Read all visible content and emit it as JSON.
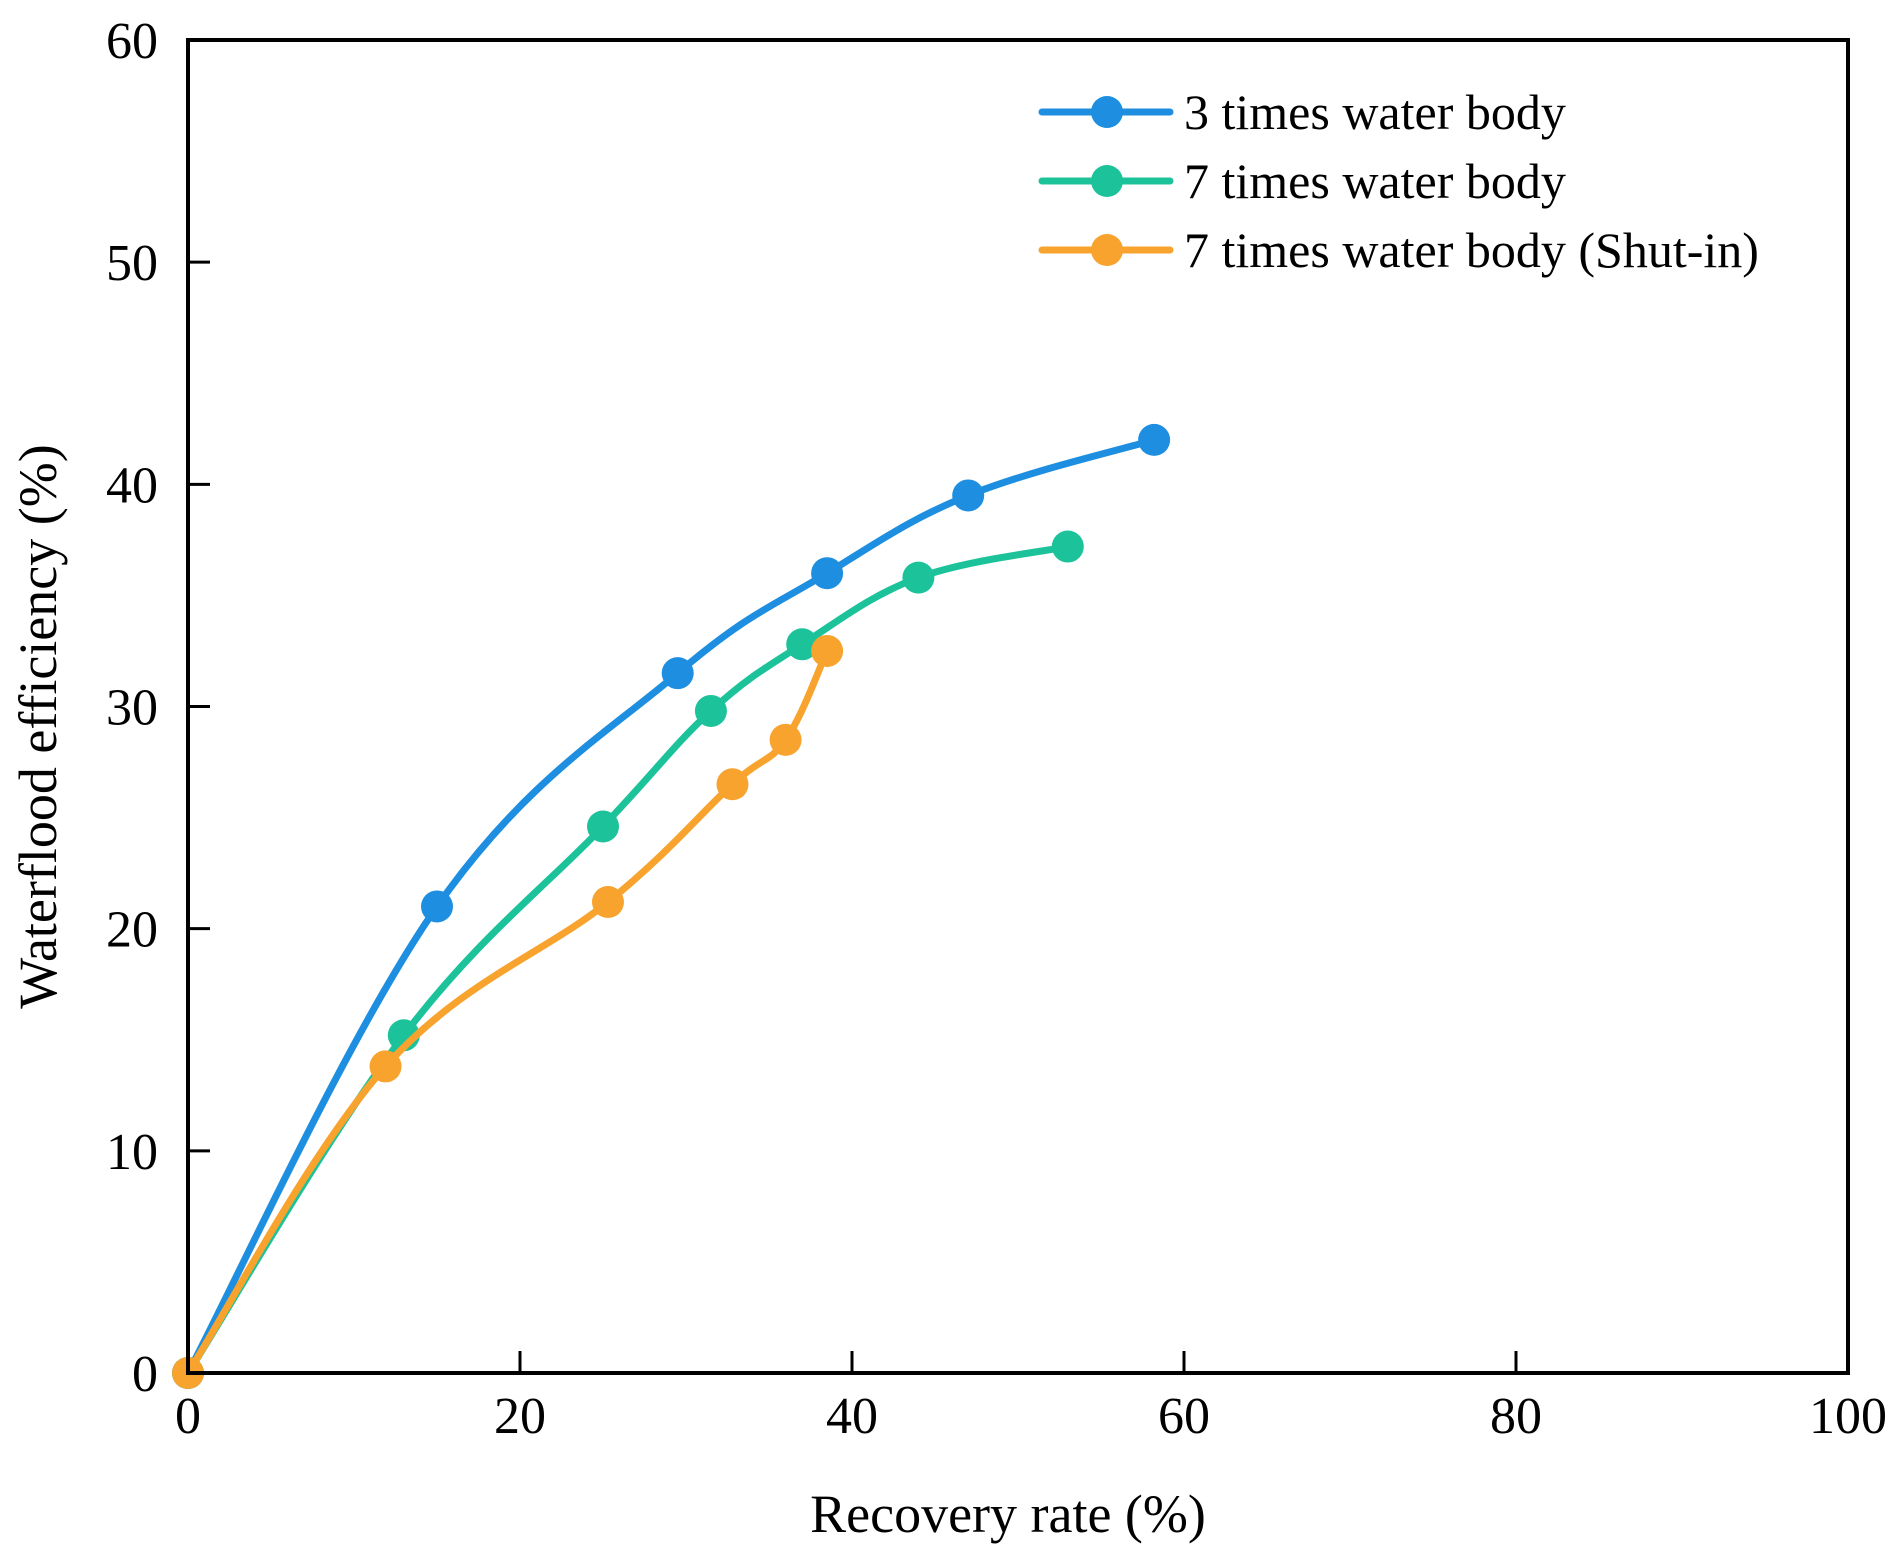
{
  "chart_data": {
    "type": "line",
    "title": "",
    "xlabel": "Recovery rate (%)",
    "ylabel": "Waterflood efficiency (%)",
    "xlim": [
      0,
      100
    ],
    "ylim": [
      0,
      60
    ],
    "xticks": [
      0,
      20,
      40,
      60,
      80,
      100
    ],
    "yticks": [
      0,
      10,
      20,
      30,
      40,
      50,
      60
    ],
    "grid": false,
    "legend_position": "top-right",
    "series": [
      {
        "name": "3 times water body",
        "color": "#1e8ee0",
        "points": [
          [
            0,
            0
          ],
          [
            15,
            21
          ],
          [
            29.5,
            31.5
          ],
          [
            38.5,
            36
          ],
          [
            47,
            39.5
          ],
          [
            58.2,
            42
          ]
        ]
      },
      {
        "name": "7 times water body",
        "color": "#1cc39a",
        "points": [
          [
            0,
            0
          ],
          [
            13,
            15.2
          ],
          [
            25,
            24.6
          ],
          [
            31.5,
            29.8
          ],
          [
            37,
            32.8
          ],
          [
            44,
            35.8
          ],
          [
            53,
            37.2
          ]
        ]
      },
      {
        "name": "7 times water body (Shut-in)",
        "color": "#f7a32e",
        "points": [
          [
            0,
            0
          ],
          [
            11.9,
            13.8
          ],
          [
            25.3,
            21.2
          ],
          [
            32.8,
            26.5
          ],
          [
            36,
            28.5
          ],
          [
            38.5,
            32.5
          ]
        ]
      }
    ]
  }
}
